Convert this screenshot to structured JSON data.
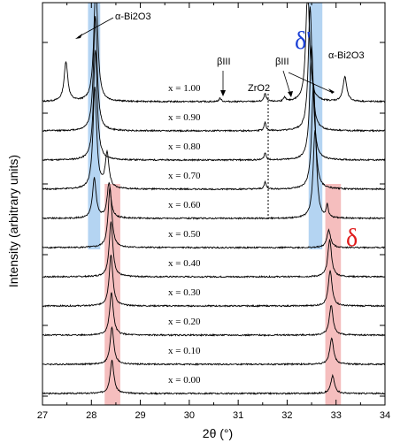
{
  "chart_data": {
    "type": "line",
    "xlabel": "2θ (°)",
    "ylabel": "Intensity (arbitrary units)",
    "xlim": [
      27,
      34
    ],
    "x_ticks": [
      "27",
      "28",
      "29",
      "30",
      "31",
      "32",
      "33",
      "34"
    ],
    "grid": false,
    "series": [
      {
        "label": "x = 0.00",
        "peaks": [
          {
            "x": 28.42,
            "h": 38
          },
          {
            "x": 32.93,
            "h": 20
          }
        ]
      },
      {
        "label": "x = 0.10",
        "peaks": [
          {
            "x": 28.42,
            "h": 42
          },
          {
            "x": 32.91,
            "h": 30
          }
        ]
      },
      {
        "label": "x = 0.20",
        "peaks": [
          {
            "x": 28.41,
            "h": 48
          },
          {
            "x": 32.9,
            "h": 34
          }
        ]
      },
      {
        "label": "x = 0.30",
        "peaks": [
          {
            "x": 28.4,
            "h": 58
          },
          {
            "x": 32.88,
            "h": 40
          }
        ]
      },
      {
        "label": "x = 0.40",
        "peaks": [
          {
            "x": 28.4,
            "h": 62
          },
          {
            "x": 32.87,
            "h": 42
          }
        ]
      },
      {
        "label": "x = 0.50",
        "peaks": [
          {
            "x": 28.38,
            "h": 68
          },
          {
            "x": 32.85,
            "h": 20
          }
        ]
      },
      {
        "label": "x = 0.60",
        "peaks": [
          {
            "x": 28.36,
            "h": 40
          },
          {
            "x": 28.06,
            "h": 45
          },
          {
            "x": 32.57,
            "h": 100
          },
          {
            "x": 32.82,
            "h": 14
          }
        ]
      },
      {
        "label": "x = 0.70",
        "peaks": [
          {
            "x": 28.32,
            "h": 40
          },
          {
            "x": 28.07,
            "h": 115
          },
          {
            "x": 32.54,
            "h": 120
          },
          {
            "x": 31.55,
            "h": 8
          }
        ]
      },
      {
        "label": "x = 0.80",
        "peaks": [
          {
            "x": 28.08,
            "h": 125
          },
          {
            "x": 32.5,
            "h": 130
          },
          {
            "x": 31.55,
            "h": 8
          }
        ]
      },
      {
        "label": "x = 0.90",
        "peaks": [
          {
            "x": 28.08,
            "h": 130
          },
          {
            "x": 32.47,
            "h": 140
          },
          {
            "x": 31.55,
            "h": 9
          }
        ]
      },
      {
        "label": "x = 1.00",
        "peaks": [
          {
            "x": 28.09,
            "h": 140
          },
          {
            "x": 27.48,
            "h": 45
          },
          {
            "x": 32.42,
            "h": 130
          },
          {
            "x": 33.18,
            "h": 28
          },
          {
            "x": 31.55,
            "h": 9
          },
          {
            "x": 30.63,
            "h": 4
          },
          {
            "x": 31.95,
            "h": 4
          }
        ]
      }
    ],
    "bands": [
      {
        "name": "δ'",
        "x": [
          27.93,
          28.18
        ],
        "color": "#a7cdf0"
      },
      {
        "name": "δ'",
        "x": [
          32.44,
          32.72
        ],
        "color": "#a7cdf0"
      },
      {
        "name": "δ",
        "x": [
          28.27,
          28.59
        ],
        "color": "#f3b3b3"
      },
      {
        "name": "δ",
        "x": [
          32.78,
          33.1
        ],
        "color": "#f3b3b3"
      }
    ],
    "annotations": {
      "alpha_left": "α-Bi2O3",
      "alpha_right": "α-Bi2O3",
      "beta1": "βIII",
      "beta2": "βIII",
      "zro2": "ZrO2",
      "delta_prime": "δ'",
      "delta": "δ"
    },
    "colors": {
      "delta_prime": "#1a3fd6",
      "delta": "#e01a1a"
    }
  }
}
